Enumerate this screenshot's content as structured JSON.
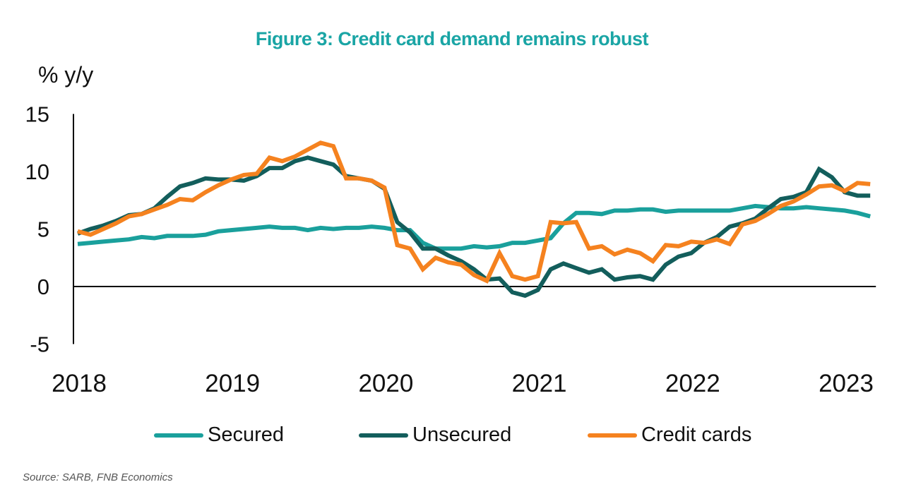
{
  "chart_data": {
    "type": "line",
    "title": "Figure 3: Credit card demand remains robust",
    "ylabel": "% y/y",
    "xlabel": "",
    "ylim": [
      -5,
      15
    ],
    "yticks": [
      "15",
      "10",
      "5",
      "0",
      "-5"
    ],
    "ytick_values": [
      15,
      10,
      5,
      0,
      -5
    ],
    "xticks": [
      "2018",
      "2019",
      "2020",
      "2021",
      "2022",
      "2023"
    ],
    "x_start": "2018-01",
    "x_frequency": "monthly",
    "grid": false,
    "legend_position": "bottom",
    "series": [
      {
        "name": "Secured",
        "color": "#1aa09c",
        "values": [
          3.7,
          3.8,
          3.9,
          4.0,
          4.1,
          4.3,
          4.2,
          4.4,
          4.4,
          4.4,
          4.5,
          4.8,
          4.9,
          5.0,
          5.1,
          5.2,
          5.1,
          5.1,
          4.9,
          5.1,
          5.0,
          5.1,
          5.1,
          5.2,
          5.1,
          4.9,
          4.9,
          3.8,
          3.3,
          3.3,
          3.3,
          3.5,
          3.4,
          3.5,
          3.8,
          3.8,
          4.0,
          4.2,
          5.5,
          6.4,
          6.4,
          6.3,
          6.6,
          6.6,
          6.7,
          6.7,
          6.5,
          6.6,
          6.6,
          6.6,
          6.6,
          6.6,
          6.8,
          7.0,
          6.9,
          6.8,
          6.8,
          6.9,
          6.8,
          6.7,
          6.6,
          6.4,
          6.1
        ]
      },
      {
        "name": "Unsecured",
        "color": "#135e5c",
        "values": [
          4.6,
          5.0,
          5.3,
          5.7,
          6.2,
          6.3,
          6.8,
          7.8,
          8.7,
          9.0,
          9.4,
          9.3,
          9.3,
          9.2,
          9.6,
          10.3,
          10.3,
          10.9,
          11.2,
          10.9,
          10.6,
          9.6,
          9.4,
          9.2,
          8.5,
          5.6,
          4.7,
          3.3,
          3.3,
          2.7,
          2.2,
          1.5,
          0.6,
          0.7,
          -0.5,
          -0.8,
          -0.3,
          1.5,
          2.0,
          1.6,
          1.2,
          1.5,
          0.6,
          0.8,
          0.9,
          0.6,
          1.9,
          2.6,
          2.9,
          3.8,
          4.3,
          5.2,
          5.5,
          5.9,
          6.8,
          7.6,
          7.8,
          8.2,
          10.2,
          9.5,
          8.2,
          7.9,
          7.9
        ]
      },
      {
        "name": "Credit cards",
        "color": "#f5821f",
        "values": [
          4.8,
          4.5,
          5.0,
          5.5,
          6.1,
          6.3,
          6.7,
          7.1,
          7.6,
          7.5,
          8.2,
          8.8,
          9.3,
          9.7,
          9.8,
          11.2,
          10.9,
          11.3,
          11.9,
          12.5,
          12.2,
          9.4,
          9.4,
          9.2,
          8.6,
          3.6,
          3.3,
          1.5,
          2.5,
          2.1,
          1.9,
          1.0,
          0.5,
          2.9,
          0.9,
          0.6,
          0.9,
          5.6,
          5.5,
          5.6,
          3.3,
          3.5,
          2.8,
          3.2,
          2.9,
          2.2,
          3.6,
          3.5,
          3.9,
          3.8,
          4.1,
          3.7,
          5.4,
          5.7,
          6.3,
          7.0,
          7.4,
          8.0,
          8.7,
          8.8,
          8.3,
          9.0,
          8.9
        ]
      }
    ],
    "source": "Source: SARB, FNB Economics"
  }
}
